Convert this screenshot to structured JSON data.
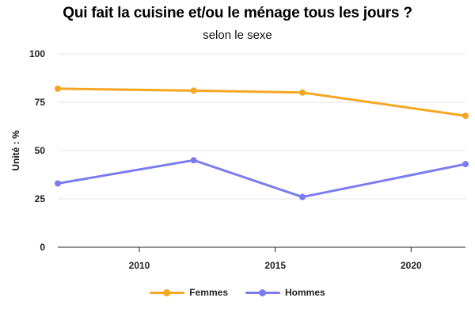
{
  "chart_data": {
    "type": "line",
    "title": "Qui fait la cuisine et/ou le ménage tous les jours ?",
    "subtitle": "selon le sexe",
    "ylabel": "Unité : %",
    "xlim": [
      2007,
      2022
    ],
    "ylim": [
      0,
      100
    ],
    "x_ticks": [
      "2010",
      "2015",
      "2020"
    ],
    "y_ticks": [
      "0",
      "25",
      "50",
      "75",
      "100"
    ],
    "grid": true,
    "legend_position": "bottom",
    "series": [
      {
        "name": "Femmes",
        "color": "#F5A623",
        "x": [
          2007,
          2012,
          2016,
          2022
        ],
        "values": [
          82,
          81,
          80,
          68
        ]
      },
      {
        "name": "Hommes",
        "color": "#7B7BEF",
        "x": [
          2007,
          2012,
          2016,
          2022
        ],
        "values": [
          33,
          45,
          26,
          43
        ]
      }
    ]
  }
}
